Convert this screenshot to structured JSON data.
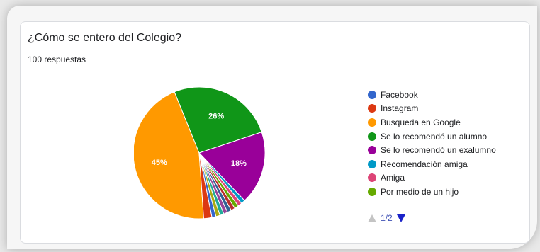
{
  "card": {
    "title": "¿Cómo se entero del Colegio?",
    "subtitle": "100 respuestas"
  },
  "pager": {
    "label": "1/2",
    "prev_icon": "triangle-up-icon",
    "next_icon": "triangle-down-icon"
  },
  "chart_data": {
    "type": "pie",
    "title": "¿Cómo se entero del Colegio?",
    "subtitle": "100 respuestas",
    "legend_placement": "right",
    "slices": [
      {
        "label": "Busqueda en Google",
        "value": 45,
        "pct_label": "45%",
        "color": "#ff9900"
      },
      {
        "label": "Se lo recomendó un alumno",
        "value": 26,
        "pct_label": "26%",
        "color": "#109618"
      },
      {
        "label": "Se lo recomendó un exalumno",
        "value": 18,
        "pct_label": "18%",
        "color": "#990099"
      },
      {
        "label": "Recomendación amiga",
        "value": 1,
        "pct_label": "",
        "color": "#0099c6"
      },
      {
        "label": "Amiga",
        "value": 1,
        "pct_label": "",
        "color": "#dd4477"
      },
      {
        "label": "Por medio de un hijo",
        "value": 1,
        "pct_label": "",
        "color": "#66aa00"
      },
      {
        "label": "",
        "value": 1,
        "pct_label": "",
        "color": "#b82e2e"
      },
      {
        "label": "",
        "value": 1,
        "pct_label": "",
        "color": "#316395"
      },
      {
        "label": "",
        "value": 1,
        "pct_label": "",
        "color": "#994499"
      },
      {
        "label": "",
        "value": 1,
        "pct_label": "",
        "color": "#22aa99"
      },
      {
        "label": "",
        "value": 1,
        "pct_label": "",
        "color": "#aaaa11"
      },
      {
        "label": "Facebook",
        "value": 1,
        "pct_label": "",
        "color": "#3366cc"
      },
      {
        "label": "Instagram",
        "value": 2,
        "pct_label": "",
        "color": "#dc3912"
      }
    ],
    "legend": [
      {
        "label": "Facebook",
        "color": "#3366cc"
      },
      {
        "label": "Instagram",
        "color": "#dc3912"
      },
      {
        "label": "Busqueda en Google",
        "color": "#ff9900"
      },
      {
        "label": "Se lo recomendó un alumno",
        "color": "#109618"
      },
      {
        "label": "Se lo recomendó un exalumno",
        "color": "#990099"
      },
      {
        "label": "Recomendación amiga",
        "color": "#0099c6"
      },
      {
        "label": "Amiga",
        "color": "#dd4477"
      },
      {
        "label": "Por medio de un hijo",
        "color": "#66aa00"
      }
    ]
  }
}
